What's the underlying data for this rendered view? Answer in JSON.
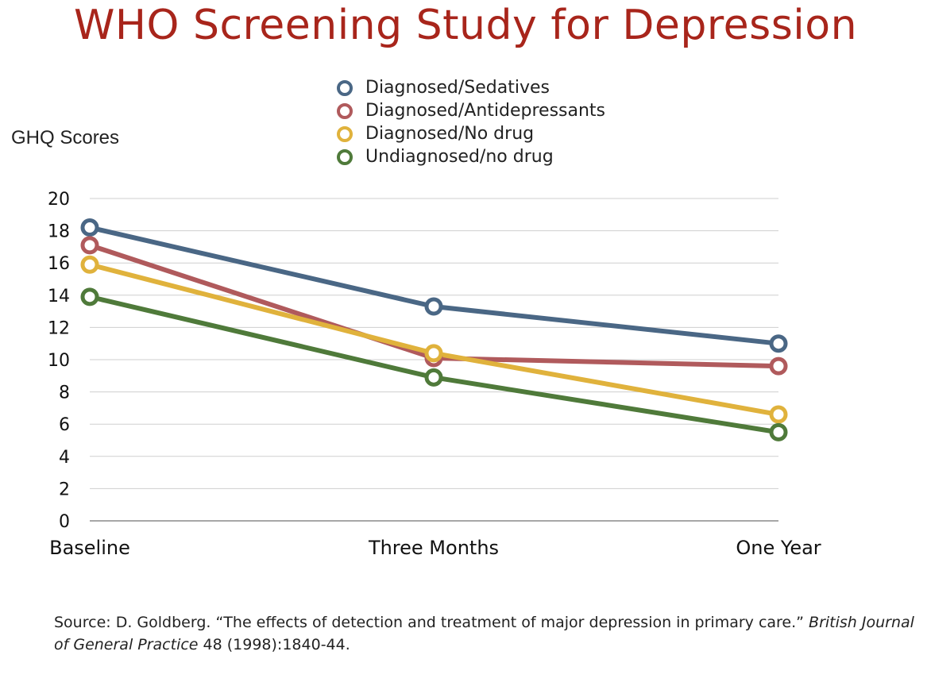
{
  "chart_data": {
    "type": "line",
    "title": "WHO Screening Study for Depression",
    "ylabel": "GHQ Scores",
    "xlabel": "",
    "categories": [
      "Baseline",
      "Three Months",
      "One Year"
    ],
    "yticks": [
      "0",
      "2",
      "4",
      "6",
      "8",
      "10",
      "12",
      "14",
      "16",
      "18",
      "20"
    ],
    "ylim": [
      0,
      20
    ],
    "grid": true,
    "legend_position": "top-center",
    "series": [
      {
        "name": "Diagnosed/Sedatives",
        "color": "#4a6785",
        "values": [
          18.2,
          13.3,
          11.0
        ]
      },
      {
        "name": "Diagnosed/Antidepressants",
        "color": "#b05a5c",
        "values": [
          17.1,
          10.1,
          9.6
        ]
      },
      {
        "name": "Diagnosed/No drug",
        "color": "#e0b23c",
        "values": [
          15.9,
          10.4,
          6.6
        ]
      },
      {
        "name": "Undiagnosed/no drug",
        "color": "#4f7a3a",
        "values": [
          13.9,
          8.9,
          5.5
        ]
      }
    ]
  },
  "source": {
    "prefix": "Source: D. Goldberg. “The effects of detection and treatment of major depression in primary care.” ",
    "journal": "British Journal of General Practice",
    "suffix": " 48 (1998):1840-44."
  }
}
